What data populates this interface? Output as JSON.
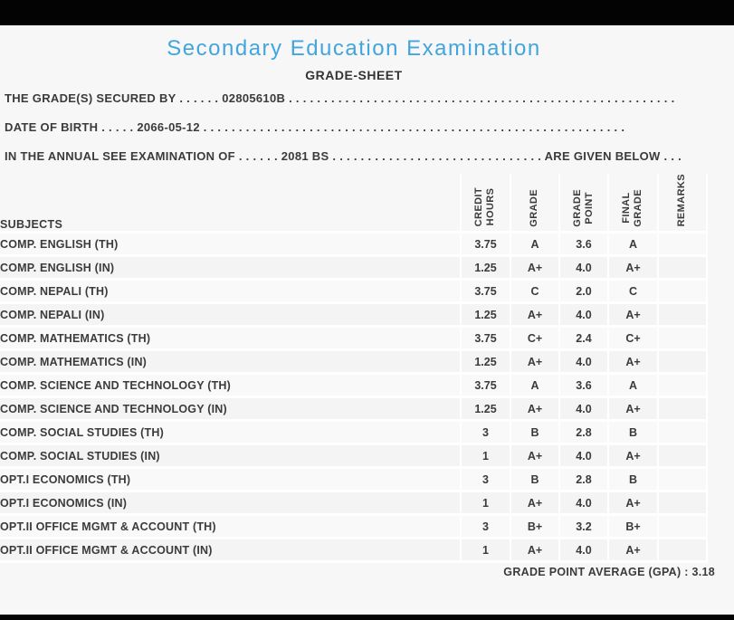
{
  "page": {
    "title": "Secondary Education Examination",
    "subtitle": "GRADE-SHEET"
  },
  "meta": {
    "line1": "THE GRADE(S) SECURED BY . . . . . . 02805610B . . . . . . . . . . . . . . . . . . . . . . . . . . . . . . . . . . . . . . . . . . . . . . . . . . . . . . .",
    "line2": "DATE OF BIRTH . . . . . 2066-05-12 . . . . . . . . . . . . . . . . . . . . . . . . . . . . . . . . . . . . . . . . . . . . . . . . . . . . . . . . . . . .",
    "line3": "IN THE ANNUAL SEE EXAMINATION OF . . . . . . 2081 BS . . . . . . . . . . . . . . . . . . . . . . . . . . . . . . ARE GIVEN BELOW . . ."
  },
  "table": {
    "headers": {
      "subjects": "SUBJECTS",
      "credit_hours": "CREDIT\nHOURS",
      "grade": "GRADE",
      "grade_point": "GRADE\nPOINT",
      "final_grade": "FINAL\nGRADE",
      "remarks": "REMARKS"
    },
    "rows": [
      {
        "subject": "COMP. ENGLISH (TH)",
        "credit_hours": "3.75",
        "grade": "A",
        "grade_point": "3.6",
        "final_grade": "A",
        "remarks": ""
      },
      {
        "subject": "COMP. ENGLISH (IN)",
        "credit_hours": "1.25",
        "grade": "A+",
        "grade_point": "4.0",
        "final_grade": "A+",
        "remarks": ""
      },
      {
        "subject": "COMP. NEPALI (TH)",
        "credit_hours": "3.75",
        "grade": "C",
        "grade_point": "2.0",
        "final_grade": "C",
        "remarks": ""
      },
      {
        "subject": "COMP. NEPALI (IN)",
        "credit_hours": "1.25",
        "grade": "A+",
        "grade_point": "4.0",
        "final_grade": "A+",
        "remarks": ""
      },
      {
        "subject": "COMP. MATHEMATICS (TH)",
        "credit_hours": "3.75",
        "grade": "C+",
        "grade_point": "2.4",
        "final_grade": "C+",
        "remarks": ""
      },
      {
        "subject": "COMP. MATHEMATICS (IN)",
        "credit_hours": "1.25",
        "grade": "A+",
        "grade_point": "4.0",
        "final_grade": "A+",
        "remarks": ""
      },
      {
        "subject": "COMP. SCIENCE AND TECHNOLOGY (TH)",
        "credit_hours": "3.75",
        "grade": "A",
        "grade_point": "3.6",
        "final_grade": "A",
        "remarks": ""
      },
      {
        "subject": "COMP. SCIENCE AND TECHNOLOGY (IN)",
        "credit_hours": "1.25",
        "grade": "A+",
        "grade_point": "4.0",
        "final_grade": "A+",
        "remarks": ""
      },
      {
        "subject": "COMP. SOCIAL STUDIES (TH)",
        "credit_hours": "3",
        "grade": "B",
        "grade_point": "2.8",
        "final_grade": "B",
        "remarks": ""
      },
      {
        "subject": "COMP. SOCIAL STUDIES (IN)",
        "credit_hours": "1",
        "grade": "A+",
        "grade_point": "4.0",
        "final_grade": "A+",
        "remarks": ""
      },
      {
        "subject": "OPT.I ECONOMICS (TH)",
        "credit_hours": "3",
        "grade": "B",
        "grade_point": "2.8",
        "final_grade": "B",
        "remarks": ""
      },
      {
        "subject": "OPT.I ECONOMICS (IN)",
        "credit_hours": "1",
        "grade": "A+",
        "grade_point": "4.0",
        "final_grade": "A+",
        "remarks": ""
      },
      {
        "subject": "OPT.II OFFICE MGMT & ACCOUNT (TH)",
        "credit_hours": "3",
        "grade": "B+",
        "grade_point": "3.2",
        "final_grade": "B+",
        "remarks": ""
      },
      {
        "subject": "OPT.II OFFICE MGMT & ACCOUNT (IN)",
        "credit_hours": "1",
        "grade": "A+",
        "grade_point": "4.0",
        "final_grade": "A+",
        "remarks": ""
      }
    ]
  },
  "footer": {
    "gpa_label": "GRADE POINT AVERAGE (GPA) : 3.18"
  },
  "colors": {
    "accent_blue": "#42a5de",
    "text": "#3b3b3b",
    "page_background": "#f7f7f7",
    "separator": "#ffffff",
    "edge_bar": "#030303"
  }
}
